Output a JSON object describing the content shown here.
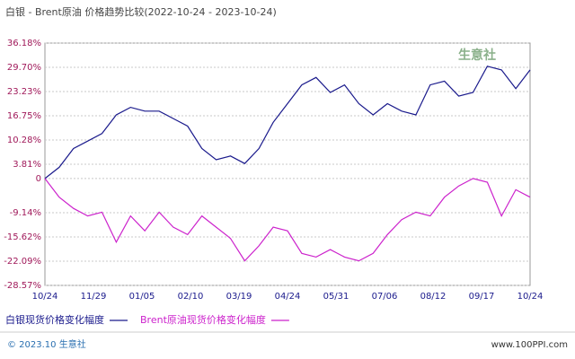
{
  "chart_data": {
    "type": "line",
    "title": "白银 - Brent原油 价格趋势比较(2022-10-24 - 2023-10-24)",
    "x_labels": [
      "10/24",
      "11/29",
      "01/05",
      "02/10",
      "03/19",
      "04/24",
      "05/31",
      "07/06",
      "08/12",
      "09/17",
      "10/24"
    ],
    "series": [
      {
        "name": "白银现货价格变化幅度",
        "color": "#1a1a8c",
        "values": [
          0,
          3,
          8,
          10,
          12,
          17,
          19,
          18,
          18,
          16,
          14,
          8,
          5,
          6,
          4,
          8,
          15,
          20,
          25,
          27,
          23,
          25,
          20,
          17,
          20,
          18,
          17,
          25,
          26,
          22,
          23,
          30,
          29,
          24,
          29
        ]
      },
      {
        "name": "Brent原油现货价格变化幅度",
        "color": "#cc22cc",
        "values": [
          0,
          -5,
          -8,
          -10,
          -9,
          -17,
          -10,
          -14,
          -9,
          -13,
          -15,
          -10,
          -13,
          -16,
          -22,
          -18,
          -13,
          -14,
          -20,
          -21,
          -19,
          -21,
          -22,
          -20,
          -15,
          -11,
          -9,
          -10,
          -5,
          -2,
          0,
          -1,
          -10,
          -3,
          -5
        ]
      }
    ],
    "ylim": [
      -28.57,
      36.18
    ],
    "yticks": [
      {
        "value": 36.18,
        "label": "36.18%"
      },
      {
        "value": 29.7,
        "label": "29.70%"
      },
      {
        "value": 23.23,
        "label": "23.23%"
      },
      {
        "value": 16.75,
        "label": "16.75%"
      },
      {
        "value": 10.28,
        "label": "10.28%"
      },
      {
        "value": 3.81,
        "label": "3.81%"
      },
      0,
      {
        "value": -9.14,
        "label": "-9.14%"
      },
      {
        "value": -15.62,
        "label": "-15.62%"
      },
      {
        "value": -22.09,
        "label": "-22.09%"
      },
      {
        "value": -28.57,
        "label": "-28.57%"
      }
    ],
    "grid": true,
    "footer": "© 2023.10 生意社",
    "watermark": "www.100PPI.com",
    "logo": "生意社"
  }
}
